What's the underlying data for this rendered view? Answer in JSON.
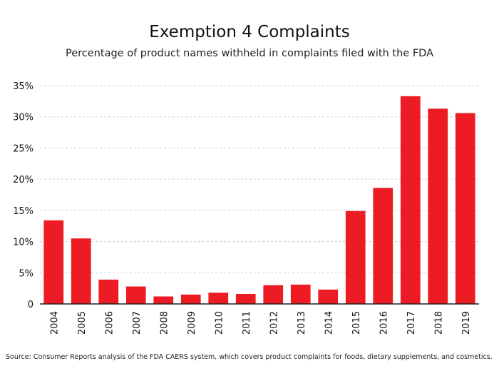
{
  "chart_data": {
    "type": "bar",
    "title": "Exemption 4 Complaints",
    "subtitle": "Percentage of product names withheld in complaints filed with the FDA",
    "xlabel": "",
    "ylabel": "",
    "categories": [
      "2004",
      "2005",
      "2006",
      "2007",
      "2008",
      "2009",
      "2010",
      "2011",
      "2012",
      "2013",
      "2014",
      "2015",
      "2016",
      "2017",
      "2018",
      "2019"
    ],
    "values": [
      13.4,
      10.5,
      3.9,
      2.8,
      1.2,
      1.5,
      1.8,
      1.6,
      3.0,
      3.1,
      2.3,
      14.9,
      18.6,
      33.3,
      31.3,
      30.6
    ],
    "ylim": [
      0,
      35
    ],
    "yticks": [
      0,
      5,
      10,
      15,
      20,
      25,
      30,
      35
    ],
    "ytick_labels": [
      "0",
      "5%",
      "10%",
      "15%",
      "20%",
      "25%",
      "30%",
      "35%"
    ],
    "bar_color": "#ed1c24",
    "grid": true,
    "legend": "none"
  },
  "source": "Source: Consumer Reports analysis of the FDA CAERS system, which covers product complaints for foods, dietary supplements, and cosmetics."
}
